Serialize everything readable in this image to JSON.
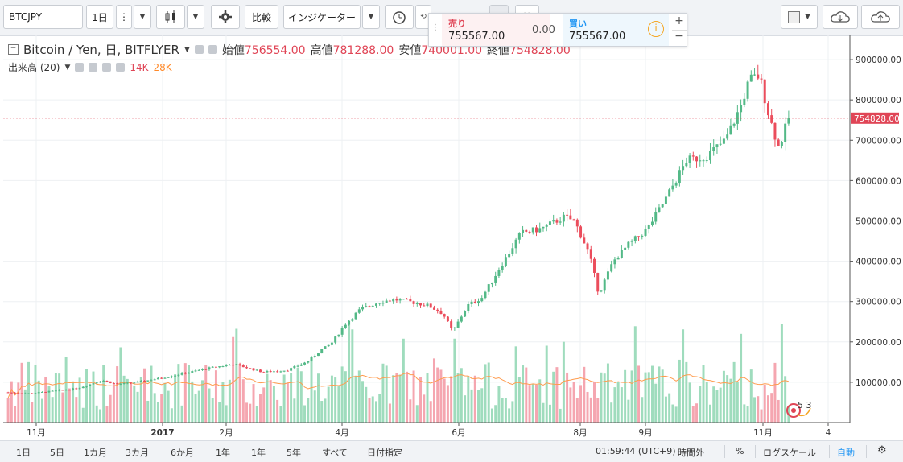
{
  "toolbar": {
    "symbol": "BTCJPY",
    "interval": "1日",
    "compare_label": "比較",
    "indicators_label": "インジケーター"
  },
  "trade": {
    "sell_label": "売り",
    "sell_price": "755567.00",
    "spread": "0.00",
    "buy_label": "買い",
    "buy_price": "755567.00",
    "plus": "+",
    "minus": "−",
    "info_icon": "i"
  },
  "legend": {
    "title": "Bitcoin / Yen, 日, BITFLYER",
    "open_label": "始値",
    "open_value": "756554.00",
    "high_label": "高値",
    "high_value": "781288.00",
    "low_label": "安値",
    "low_value": "740001.00",
    "close_label": "終値",
    "close_value": "754828.00",
    "volume_label": "出来高 (20)",
    "volume_value": "14K",
    "volume_ma": "28K"
  },
  "price_marker": "754828.00",
  "events_badge": "5 3",
  "bottom": {
    "ranges": [
      "1日",
      "5日",
      "1カ月",
      "3カ月",
      "6か月",
      "1年",
      "1年",
      "5年",
      "すべて",
      "日付指定"
    ],
    "clock": "01:59:44 (UTC+9)",
    "session": "時間外",
    "percent": "%",
    "log_scale": "ログスケール",
    "auto": "自動"
  },
  "colors": {
    "up": "#53b987",
    "down": "#eb4d5c",
    "volume_up": "#9fdcbd",
    "volume_down": "#f5a6b0",
    "ma": "#ff9b4d",
    "price_line": "#e04556"
  },
  "chart_data": {
    "type": "candlestick",
    "title": "Bitcoin / Yen, 日, BITFLYER",
    "x_ticks": [
      "11月",
      "2017",
      "2月",
      "4月",
      "6月",
      "8月",
      "9月",
      "11月",
      "4"
    ],
    "y_ticks": [
      "100000.00",
      "200000.00",
      "300000.00",
      "400000.00",
      "500000.00",
      "600000.00",
      "700000.00",
      "800000.00",
      "900000.00"
    ],
    "y_range": [
      0,
      960000
    ],
    "current_price": 754828,
    "price_path": [
      [
        2016.8,
        75000
      ],
      [
        2016.85,
        72000
      ],
      [
        2016.9,
        78000
      ],
      [
        2016.95,
        85000
      ],
      [
        2017.0,
        105000
      ],
      [
        2017.03,
        95000
      ],
      [
        2017.07,
        100000
      ],
      [
        2017.12,
        110000
      ],
      [
        2017.18,
        125000
      ],
      [
        2017.22,
        135000
      ],
      [
        2017.27,
        145000
      ],
      [
        2017.33,
        125000
      ],
      [
        2017.38,
        130000
      ],
      [
        2017.42,
        150000
      ],
      [
        2017.45,
        180000
      ],
      [
        2017.47,
        195000
      ],
      [
        2017.5,
        245000
      ],
      [
        2017.53,
        280000
      ],
      [
        2017.57,
        300000
      ],
      [
        2017.6,
        305000
      ],
      [
        2017.63,
        300000
      ],
      [
        2017.67,
        290000
      ],
      [
        2017.7,
        270000
      ],
      [
        2017.72,
        225000
      ],
      [
        2017.75,
        290000
      ],
      [
        2017.78,
        310000
      ],
      [
        2017.82,
        390000
      ],
      [
        2017.86,
        470000
      ],
      [
        2017.9,
        480000
      ],
      [
        2017.95,
        510000
      ],
      [
        2017.97,
        500000
      ],
      [
        2018.0,
        420000
      ],
      [
        2018.02,
        320000
      ],
      [
        2018.05,
        400000
      ],
      [
        2018.08,
        440000
      ],
      [
        2018.12,
        480000
      ],
      [
        2018.16,
        560000
      ],
      [
        2018.2,
        650000
      ],
      [
        2018.24,
        660000
      ],
      [
        2018.28,
        700000
      ],
      [
        2018.31,
        780000
      ],
      [
        2018.33,
        850000
      ],
      [
        2018.35,
        860000
      ],
      [
        2018.37,
        760000
      ],
      [
        2018.39,
        680000
      ],
      [
        2018.41,
        755000
      ]
    ],
    "volume_range": [
      0,
      60000
    ]
  }
}
